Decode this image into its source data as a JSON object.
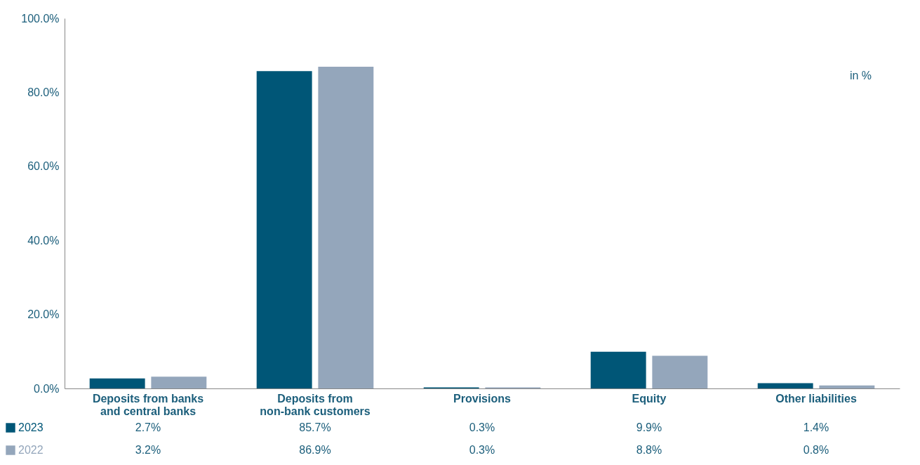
{
  "chart_data": {
    "type": "bar",
    "categories": [
      "Deposits from banks\nand central banks",
      "Deposits from\nnon-bank customers",
      "Provisions",
      "Equity",
      "Other liabilities"
    ],
    "series": [
      {
        "name": "2023",
        "color": "#005677",
        "values": [
          2.7,
          85.7,
          0.3,
          9.9,
          1.4
        ],
        "value_labels": [
          "2.7%",
          "85.7%",
          "0.3%",
          "9.9%",
          "1.4%"
        ]
      },
      {
        "name": "2022",
        "color": "#94a6bb",
        "values": [
          3.2,
          86.9,
          0.3,
          8.8,
          0.8
        ],
        "value_labels": [
          "3.2%",
          "86.9%",
          "0.3%",
          "8.8%",
          "0.8%"
        ]
      }
    ],
    "ylim": [
      0,
      100
    ],
    "yticks": [
      {
        "value": 0,
        "label": "0.0%"
      },
      {
        "value": 20,
        "label": "20.0%"
      },
      {
        "value": 40,
        "label": "40.0%"
      },
      {
        "value": 60,
        "label": "60.0%"
      },
      {
        "value": 80,
        "label": "80.0%"
      },
      {
        "value": 100,
        "label": "100.0%"
      }
    ],
    "legend": "bottom left",
    "annotations": [
      "in %"
    ]
  }
}
